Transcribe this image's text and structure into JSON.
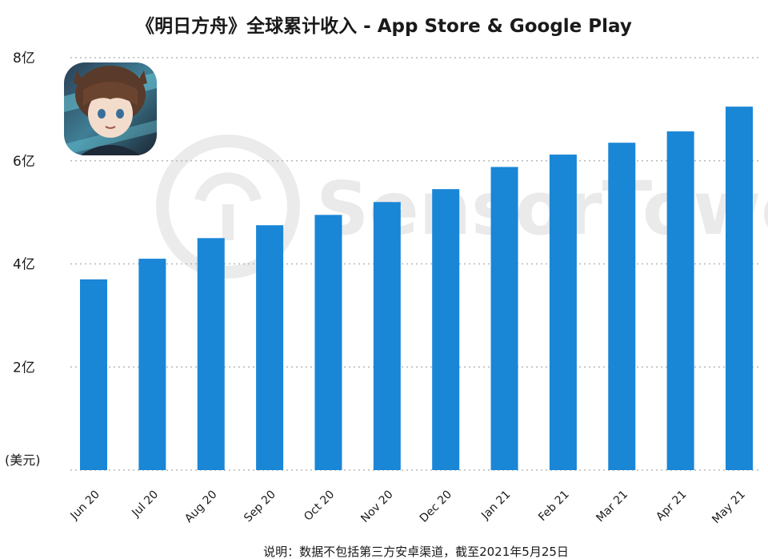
{
  "chart_data": {
    "type": "bar",
    "title": "《明日方舟》全球累计收入 - App Store & Google Play",
    "unit_label": "(美元)",
    "categories": [
      "Jun 20",
      "Jul 20",
      "Aug 20",
      "Sep 20",
      "Oct 20",
      "Nov 20",
      "Dec 20",
      "Jan 21",
      "Feb 21",
      "Mar 21",
      "Apr 21",
      "May 21"
    ],
    "values": [
      3.7,
      4.1,
      4.5,
      4.75,
      4.95,
      5.2,
      5.45,
      5.88,
      6.12,
      6.35,
      6.57,
      7.05
    ],
    "ylim": [
      0,
      8
    ],
    "yticks": [
      {
        "value": 2,
        "label": "2亿"
      },
      {
        "value": 4,
        "label": "4亿"
      },
      {
        "value": 6,
        "label": "6亿"
      },
      {
        "value": 8,
        "label": "8亿"
      }
    ],
    "grid": true,
    "bar_color": "#1a86d6"
  },
  "watermark": {
    "text": "SensorTower"
  },
  "app_icon": {
    "name": "arknights-app-icon"
  },
  "footnote": "说明：数据不包括第三方安卓渠道，截至2021年5月25日"
}
